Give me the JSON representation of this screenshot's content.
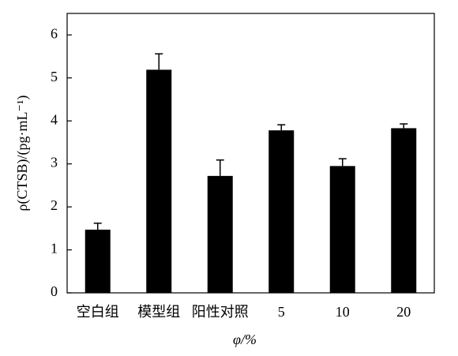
{
  "chart_data": {
    "type": "bar",
    "x_label": "φ/%",
    "y_label": "ρ(CTSB)/(pg·mL⁻¹)",
    "categories": [
      "空白组",
      "模型组",
      "阳性对照",
      "5",
      "10",
      "20"
    ],
    "values": [
      1.47,
      5.19,
      2.72,
      3.78,
      2.95,
      3.83
    ],
    "errors": [
      0.15,
      0.37,
      0.37,
      0.13,
      0.17,
      0.1
    ],
    "color": "#000000",
    "ylim": [
      0,
      6.5
    ],
    "yticks": [
      0,
      1,
      2,
      3,
      4,
      5,
      6
    ],
    "grid": false
  }
}
